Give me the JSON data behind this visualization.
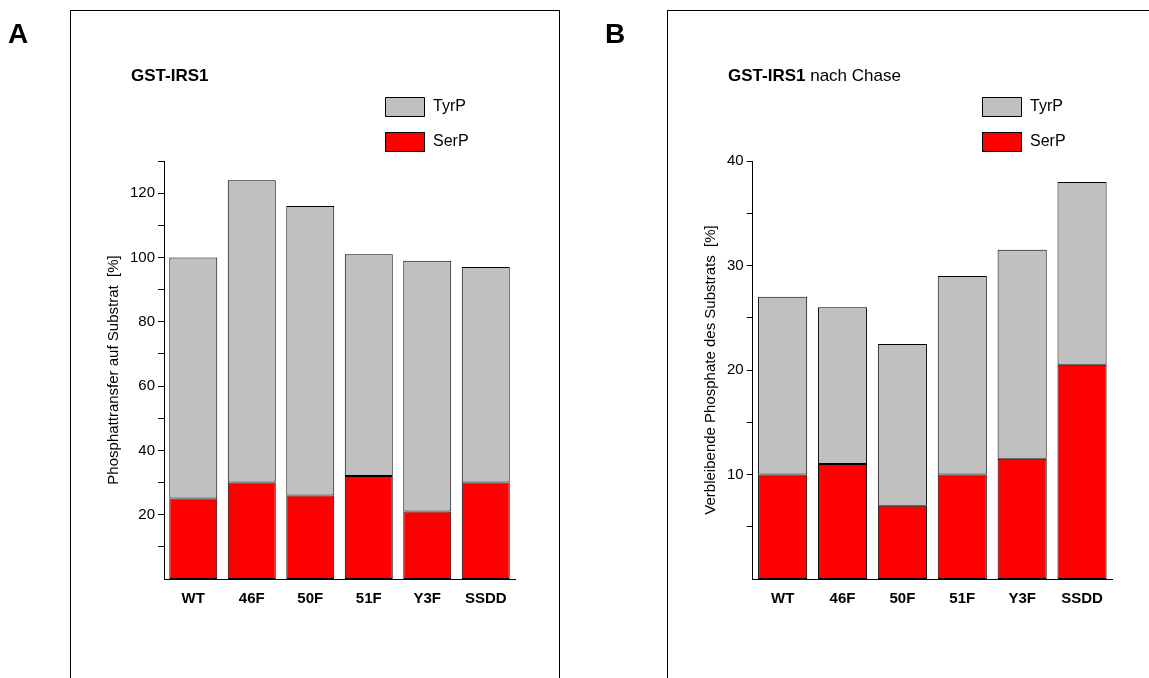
{
  "chart_data": [
    {
      "type": "bar",
      "stacked": true,
      "title": "GST-IRS1",
      "ylabel": "Phosphattransfer auf Substrat  [%]",
      "categories": [
        "WT",
        "46F",
        "50F",
        "51F",
        "Y3F",
        "SSDD"
      ],
      "series": [
        {
          "name": "SerP",
          "color": "#ff0000",
          "values": [
            25,
            30,
            26,
            32,
            21,
            30
          ]
        },
        {
          "name": "TyrP",
          "color": "#c0c0c0",
          "values": [
            75,
            94,
            90,
            69,
            78,
            67
          ]
        }
      ],
      "ylim": [
        0,
        130
      ],
      "yticks": [
        {
          "value": 10,
          "label": null
        },
        20,
        {
          "value": 30,
          "label": null
        },
        40,
        {
          "value": 50,
          "label": null
        },
        60,
        {
          "value": 70,
          "label": null
        },
        80,
        {
          "value": 90,
          "label": null
        },
        100,
        {
          "value": 110,
          "label": null
        },
        120,
        {
          "value": 130,
          "label": null
        }
      ],
      "grid": false,
      "legend": "top right",
      "annotations": [
        "A"
      ]
    },
    {
      "type": "bar",
      "stacked": true,
      "title": "GST-IRS1 nach Chase",
      "ylabel": "Verbleibende Phosphate des Substrats  [%]",
      "categories": [
        "WT",
        "46F",
        "50F",
        "51F",
        "Y3F",
        "SSDD"
      ],
      "series": [
        {
          "name": "SerP",
          "color": "#ff0000",
          "values": [
            10,
            11,
            7,
            10,
            11.5,
            20.5
          ]
        },
        {
          "name": "TyrP",
          "color": "#c0c0c0",
          "values": [
            17,
            15,
            15.5,
            19,
            20,
            17.5
          ]
        }
      ],
      "ylim": [
        0,
        40
      ],
      "yticks": [
        {
          "value": 5,
          "label": null
        },
        10,
        {
          "value": 15,
          "label": null
        },
        20,
        {
          "value": 25,
          "label": null
        },
        30,
        {
          "value": 35,
          "label": null
        },
        40
      ],
      "grid": false,
      "legend": "top right",
      "annotations": [
        "B"
      ]
    }
  ]
}
